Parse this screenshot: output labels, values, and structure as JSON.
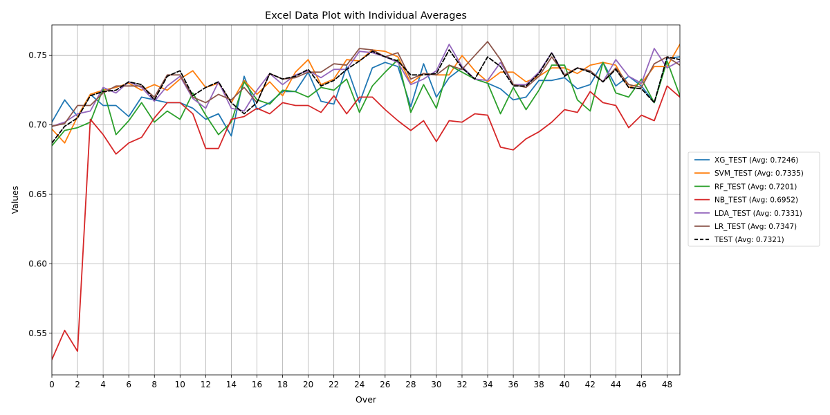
{
  "chart_data": {
    "type": "line",
    "title": "Excel Data Plot with Individual Averages",
    "xlabel": "Over",
    "ylabel": "Values",
    "xlim": [
      0,
      49
    ],
    "ylim": [
      0.52,
      0.772
    ],
    "xticks": [
      0,
      2,
      4,
      6,
      8,
      10,
      12,
      14,
      16,
      18,
      20,
      22,
      24,
      26,
      28,
      30,
      32,
      34,
      36,
      38,
      40,
      42,
      44,
      46,
      48
    ],
    "yticks": [
      0.55,
      0.6,
      0.65,
      0.7,
      0.75
    ],
    "ytick_labels": [
      "0.55",
      "0.60",
      "0.65",
      "0.70",
      "0.75"
    ],
    "grid": true,
    "legend_position": "outside-right",
    "x": [
      0,
      1,
      2,
      3,
      4,
      5,
      6,
      7,
      8,
      9,
      10,
      11,
      12,
      13,
      14,
      15,
      16,
      17,
      18,
      19,
      20,
      21,
      22,
      23,
      24,
      25,
      26,
      27,
      28,
      29,
      30,
      31,
      32,
      33,
      34,
      35,
      36,
      37,
      38,
      39,
      40,
      41,
      42,
      43,
      44,
      45,
      46,
      47,
      48,
      49
    ],
    "series": [
      {
        "name": "XG_TEST (Avg: 0.7246)",
        "color": "#1f77b4",
        "dashed": false,
        "values": [
          0.702,
          0.718,
          0.706,
          0.722,
          0.714,
          0.714,
          0.706,
          0.72,
          0.718,
          0.716,
          0.716,
          0.712,
          0.704,
          0.708,
          0.692,
          0.735,
          0.711,
          0.716,
          0.724,
          0.724,
          0.738,
          0.717,
          0.715,
          0.742,
          0.716,
          0.741,
          0.745,
          0.742,
          0.713,
          0.744,
          0.72,
          0.734,
          0.741,
          0.733,
          0.73,
          0.726,
          0.718,
          0.72,
          0.732,
          0.732,
          0.734,
          0.726,
          0.729,
          0.745,
          0.728,
          0.735,
          0.728,
          0.716,
          0.748,
          0.749
        ]
      },
      {
        "name": "SVM_TEST (Avg: 0.7335)",
        "color": "#ff7f0e",
        "dashed": false,
        "values": [
          0.697,
          0.687,
          0.706,
          0.722,
          0.725,
          0.727,
          0.73,
          0.725,
          0.729,
          0.725,
          0.733,
          0.739,
          0.727,
          0.73,
          0.716,
          0.732,
          0.722,
          0.731,
          0.721,
          0.738,
          0.747,
          0.729,
          0.733,
          0.747,
          0.746,
          0.754,
          0.753,
          0.749,
          0.73,
          0.737,
          0.736,
          0.736,
          0.75,
          0.739,
          0.731,
          0.738,
          0.738,
          0.731,
          0.735,
          0.741,
          0.741,
          0.737,
          0.743,
          0.745,
          0.743,
          0.727,
          0.73,
          0.742,
          0.742,
          0.758
        ]
      },
      {
        "name": "RF_TEST (Avg: 0.7201)",
        "color": "#2ca02c",
        "dashed": false,
        "values": [
          0.685,
          0.696,
          0.698,
          0.702,
          0.726,
          0.693,
          0.703,
          0.716,
          0.702,
          0.71,
          0.704,
          0.723,
          0.707,
          0.693,
          0.702,
          0.731,
          0.718,
          0.715,
          0.725,
          0.724,
          0.72,
          0.727,
          0.725,
          0.733,
          0.709,
          0.728,
          0.738,
          0.747,
          0.709,
          0.729,
          0.712,
          0.743,
          0.738,
          0.733,
          0.73,
          0.708,
          0.727,
          0.711,
          0.725,
          0.743,
          0.743,
          0.718,
          0.71,
          0.745,
          0.723,
          0.72,
          0.733,
          0.716,
          0.746,
          0.721
        ]
      },
      {
        "name": "NB_TEST (Avg: 0.6952)",
        "color": "#d62728",
        "dashed": false,
        "values": [
          0.531,
          0.552,
          0.537,
          0.704,
          0.693,
          0.679,
          0.687,
          0.691,
          0.705,
          0.716,
          0.716,
          0.708,
          0.683,
          0.683,
          0.704,
          0.706,
          0.712,
          0.708,
          0.716,
          0.714,
          0.714,
          0.709,
          0.721,
          0.708,
          0.72,
          0.72,
          0.711,
          0.703,
          0.696,
          0.703,
          0.688,
          0.703,
          0.702,
          0.708,
          0.707,
          0.684,
          0.682,
          0.69,
          0.695,
          0.702,
          0.711,
          0.709,
          0.724,
          0.716,
          0.714,
          0.698,
          0.707,
          0.703,
          0.728,
          0.72
        ]
      },
      {
        "name": "LDA_TEST (Avg: 0.7331)",
        "color": "#9467bd",
        "dashed": false,
        "values": [
          0.699,
          0.702,
          0.708,
          0.71,
          0.727,
          0.723,
          0.731,
          0.727,
          0.717,
          0.728,
          0.735,
          0.719,
          0.712,
          0.731,
          0.712,
          0.71,
          0.725,
          0.737,
          0.729,
          0.736,
          0.739,
          0.734,
          0.74,
          0.74,
          0.753,
          0.752,
          0.749,
          0.745,
          0.729,
          0.733,
          0.739,
          0.758,
          0.742,
          0.733,
          0.732,
          0.745,
          0.729,
          0.729,
          0.738,
          0.752,
          0.736,
          0.741,
          0.739,
          0.731,
          0.747,
          0.735,
          0.73,
          0.755,
          0.741,
          0.746
        ]
      },
      {
        "name": "LR_TEST (Avg: 0.7347)",
        "color": "#8c564b",
        "dashed": false,
        "values": [
          0.699,
          0.701,
          0.714,
          0.714,
          0.723,
          0.728,
          0.728,
          0.728,
          0.72,
          0.736,
          0.736,
          0.72,
          0.716,
          0.722,
          0.718,
          0.727,
          0.716,
          0.737,
          0.733,
          0.734,
          0.738,
          0.738,
          0.744,
          0.743,
          0.755,
          0.754,
          0.749,
          0.752,
          0.733,
          0.737,
          0.736,
          0.743,
          0.74,
          0.75,
          0.76,
          0.747,
          0.729,
          0.727,
          0.735,
          0.749,
          0.736,
          0.741,
          0.739,
          0.731,
          0.741,
          0.729,
          0.727,
          0.744,
          0.749,
          0.743
        ]
      },
      {
        "name": "TEST (Avg: 0.7321)",
        "color": "#000000",
        "dashed": true,
        "values": [
          0.687,
          0.699,
          0.705,
          0.721,
          0.724,
          0.725,
          0.731,
          0.729,
          0.718,
          0.735,
          0.739,
          0.721,
          0.727,
          0.731,
          0.716,
          0.708,
          0.716,
          0.737,
          0.733,
          0.735,
          0.74,
          0.728,
          0.732,
          0.74,
          0.746,
          0.753,
          0.749,
          0.746,
          0.736,
          0.736,
          0.737,
          0.754,
          0.741,
          0.733,
          0.749,
          0.742,
          0.728,
          0.728,
          0.737,
          0.752,
          0.735,
          0.741,
          0.738,
          0.731,
          0.74,
          0.727,
          0.726,
          0.716,
          0.749,
          0.747
        ]
      }
    ]
  }
}
